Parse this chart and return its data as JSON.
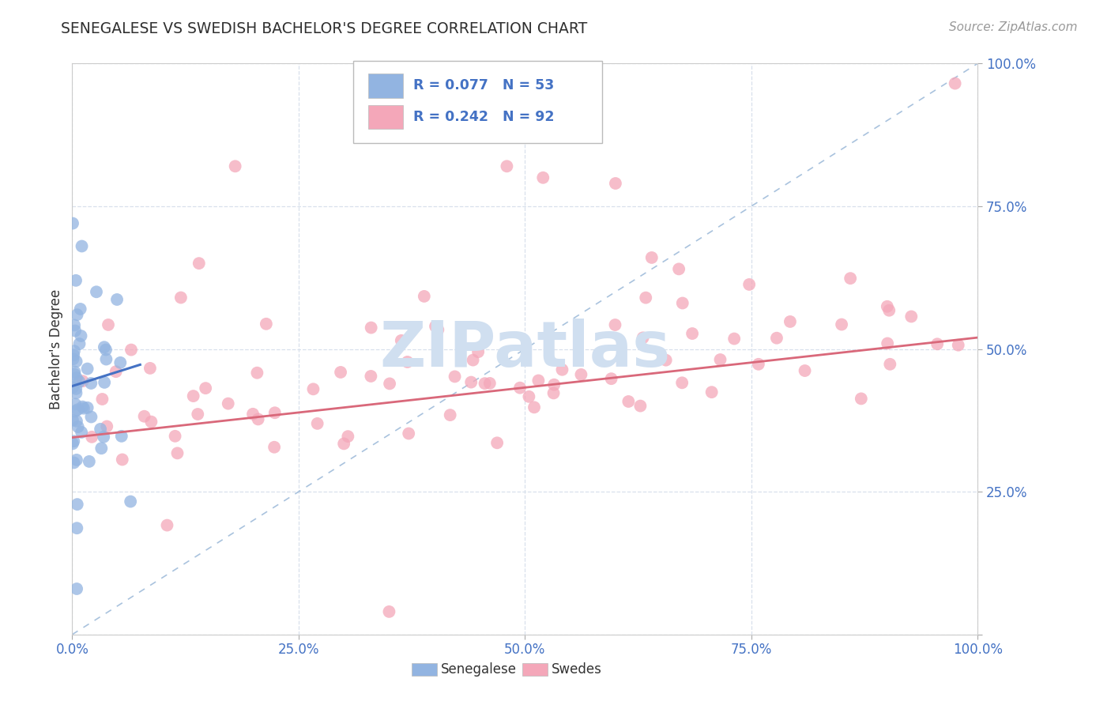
{
  "title": "SENEGALESE VS SWEDISH BACHELOR'S DEGREE CORRELATION CHART",
  "source": "Source: ZipAtlas.com",
  "ylabel": "Bachelor's Degree",
  "R_senegalese": 0.077,
  "N_senegalese": 53,
  "R_swedes": 0.242,
  "N_swedes": 92,
  "senegalese_color": "#92b4e1",
  "swedes_color": "#f4a7b9",
  "senegalese_line_color": "#4472c4",
  "swedes_line_color": "#d9687a",
  "diag_line_color": "#9ab8d8",
  "watermark_color": "#d0dff0",
  "background_color": "#ffffff",
  "grid_color": "#d8e0ec",
  "tick_color": "#4472c4",
  "title_color": "#2f2f2f",
  "source_color": "#999999"
}
